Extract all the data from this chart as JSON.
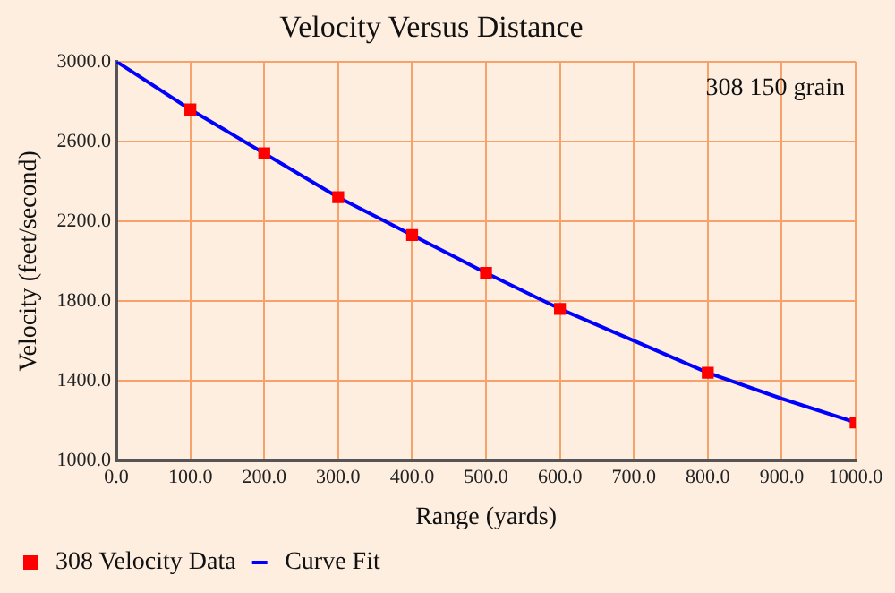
{
  "chart_data": {
    "type": "line",
    "title": "Velocity Versus Distance",
    "xlabel": "Range (yards)",
    "ylabel": "Velocity (feet/second)",
    "annotations": [
      "308 150 grain"
    ],
    "series": [
      {
        "name": "308 Velocity Data",
        "type": "scatter",
        "color": "#ff0000",
        "marker": "square",
        "x": [
          100,
          200,
          300,
          400,
          500,
          600,
          800,
          1000
        ],
        "values": [
          2760,
          2540,
          2320,
          2130,
          1940,
          1760,
          1440,
          1190
        ]
      },
      {
        "name": "Curve Fit",
        "type": "line",
        "color": "#0000ff",
        "marker": "none",
        "x": [
          0,
          100,
          200,
          300,
          400,
          500,
          600,
          700,
          800,
          900,
          1000
        ],
        "values": [
          3000,
          2760,
          2540,
          2320,
          2130,
          1940,
          1760,
          1600,
          1440,
          1310,
          1190
        ]
      }
    ],
    "xlim": [
      0,
      1000
    ],
    "ylim": [
      1000,
      3000
    ],
    "xticks": [
      {
        "value": 0,
        "label": "0.0"
      },
      {
        "value": 100,
        "label": "100.0"
      },
      {
        "value": 200,
        "label": "200.0"
      },
      {
        "value": 300,
        "label": "300.0"
      },
      {
        "value": 400,
        "label": "400.0"
      },
      {
        "value": 500,
        "label": "500.0"
      },
      {
        "value": 600,
        "label": "600.0"
      },
      {
        "value": 700,
        "label": "700.0"
      },
      {
        "value": 800,
        "label": "800.0"
      },
      {
        "value": 900,
        "label": "900.0"
      },
      {
        "value": 1000,
        "label": "1000.0"
      }
    ],
    "yticks": [
      {
        "value": 1000,
        "label": "1000.0"
      },
      {
        "value": 1400,
        "label": "1400.0"
      },
      {
        "value": 1800,
        "label": "1800.0"
      },
      {
        "value": 2200,
        "label": "2200.0"
      },
      {
        "value": 2600,
        "label": "2600.0"
      },
      {
        "value": 3000,
        "label": "3000.0"
      }
    ],
    "grid": true,
    "legend": "bottom left"
  }
}
